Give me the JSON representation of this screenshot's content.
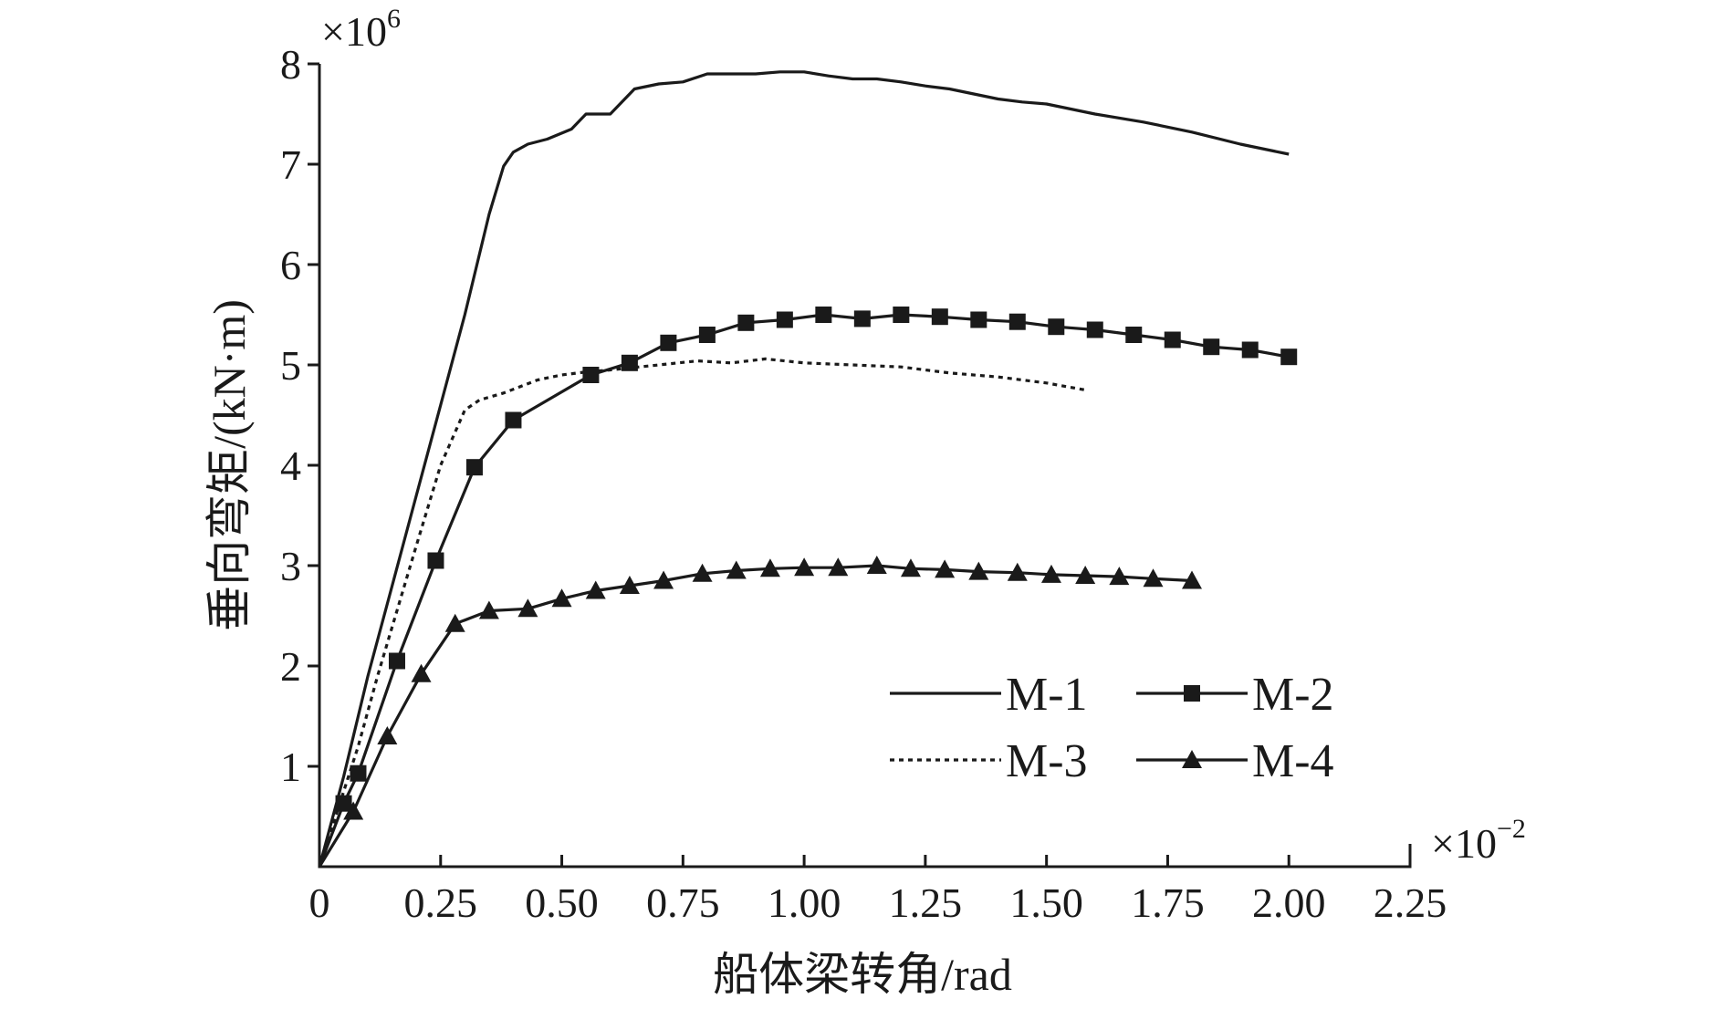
{
  "chart_data": {
    "type": "line",
    "xlabel": "船体梁转角/rad",
    "ylabel": "垂向弯矩/(kN·m)",
    "x_multiplier": "×10",
    "x_multiplier_exp": "−2",
    "y_multiplier": "×10",
    "y_multiplier_exp": "6",
    "xlim": [
      0,
      2.25
    ],
    "ylim": [
      0,
      8
    ],
    "x_ticks": [
      0,
      0.25,
      0.5,
      0.75,
      1.0,
      1.25,
      1.5,
      1.75,
      2.0,
      2.25
    ],
    "x_tick_labels": [
      "0",
      "0.25",
      "0.50",
      "0.75",
      "1.00",
      "1.25",
      "1.50",
      "1.75",
      "2.00",
      "2.25"
    ],
    "y_ticks": [
      1,
      2,
      3,
      4,
      5,
      6,
      7,
      8
    ],
    "y_tick_labels": [
      "1",
      "2",
      "3",
      "4",
      "5",
      "6",
      "7",
      "8"
    ],
    "legend_position": "lower-right",
    "series": [
      {
        "name": "M-1",
        "style": "solid",
        "marker": "none",
        "x": [
          0,
          0.05,
          0.08,
          0.1,
          0.15,
          0.2,
          0.25,
          0.3,
          0.35,
          0.38,
          0.4,
          0.43,
          0.47,
          0.52,
          0.55,
          0.6,
          0.65,
          0.7,
          0.75,
          0.8,
          0.85,
          0.9,
          0.95,
          1.0,
          1.05,
          1.1,
          1.15,
          1.2,
          1.25,
          1.3,
          1.35,
          1.4,
          1.45,
          1.5,
          1.6,
          1.7,
          1.8,
          1.9,
          2.0
        ],
        "y": [
          0,
          0.9,
          1.5,
          1.9,
          2.8,
          3.7,
          4.6,
          5.5,
          6.5,
          6.98,
          7.12,
          7.2,
          7.25,
          7.35,
          7.5,
          7.5,
          7.75,
          7.8,
          7.82,
          7.9,
          7.9,
          7.9,
          7.92,
          7.92,
          7.88,
          7.85,
          7.85,
          7.82,
          7.78,
          7.75,
          7.7,
          7.65,
          7.62,
          7.6,
          7.5,
          7.42,
          7.32,
          7.2,
          7.1
        ]
      },
      {
        "name": "M-2",
        "style": "solid",
        "marker": "square",
        "x": [
          0,
          0.05,
          0.08,
          0.16,
          0.24,
          0.32,
          0.4,
          0.56,
          0.64,
          0.72,
          0.8,
          0.88,
          0.96,
          1.04,
          1.12,
          1.2,
          1.28,
          1.36,
          1.44,
          1.52,
          1.6,
          1.68,
          1.76,
          1.84,
          1.92,
          2.0
        ],
        "y": [
          0,
          0.63,
          0.93,
          2.05,
          3.05,
          3.98,
          4.45,
          4.9,
          5.02,
          5.22,
          5.3,
          5.42,
          5.45,
          5.5,
          5.46,
          5.5,
          5.48,
          5.45,
          5.43,
          5.38,
          5.35,
          5.3,
          5.25,
          5.18,
          5.15,
          5.08
        ]
      },
      {
        "name": "M-3",
        "style": "dotted",
        "marker": "none",
        "x": [
          0,
          0.08,
          0.12,
          0.2,
          0.25,
          0.3,
          0.33,
          0.38,
          0.45,
          0.5,
          0.55,
          0.6,
          0.7,
          0.78,
          0.85,
          0.92,
          1.0,
          1.1,
          1.2,
          1.3,
          1.4,
          1.5,
          1.58
        ],
        "y": [
          0,
          1.2,
          1.9,
          3.2,
          4.0,
          4.55,
          4.65,
          4.72,
          4.85,
          4.9,
          4.93,
          4.95,
          5.0,
          5.04,
          5.02,
          5.06,
          5.02,
          5.0,
          4.98,
          4.92,
          4.88,
          4.82,
          4.75
        ]
      },
      {
        "name": "M-4",
        "style": "solid",
        "marker": "triangle",
        "x": [
          0,
          0.07,
          0.14,
          0.21,
          0.28,
          0.35,
          0.43,
          0.5,
          0.57,
          0.64,
          0.71,
          0.79,
          0.86,
          0.93,
          1.0,
          1.07,
          1.15,
          1.22,
          1.29,
          1.36,
          1.44,
          1.51,
          1.58,
          1.65,
          1.72,
          1.8
        ],
        "y": [
          0,
          0.55,
          1.3,
          1.92,
          2.42,
          2.55,
          2.57,
          2.67,
          2.75,
          2.8,
          2.85,
          2.92,
          2.95,
          2.97,
          2.98,
          2.98,
          3.0,
          2.97,
          2.96,
          2.94,
          2.93,
          2.91,
          2.9,
          2.89,
          2.87,
          2.85
        ]
      }
    ]
  }
}
